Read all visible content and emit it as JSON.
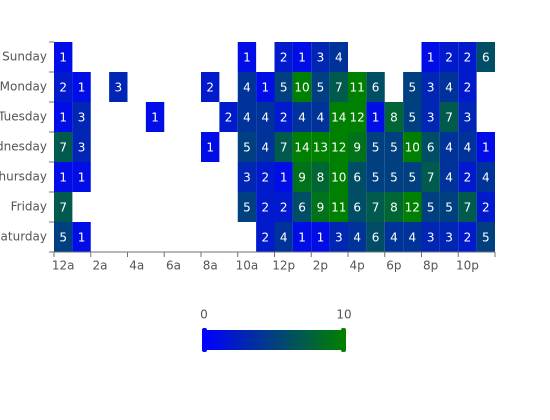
{
  "chart_data": {
    "type": "heatmap",
    "x": [
      "12a",
      null,
      "2a",
      null,
      "4a",
      null,
      "6a",
      null,
      "8a",
      null,
      "10a",
      null,
      "12p",
      null,
      "2p",
      null,
      "4p",
      null,
      "6p",
      null,
      "8p",
      null,
      "10p",
      null
    ],
    "y": [
      "Sunday",
      "Monday",
      "Tuesday",
      "Wednesday",
      "Thursday",
      "Friday",
      "Saturday"
    ],
    "values": [
      [
        1,
        null,
        null,
        null,
        null,
        null,
        null,
        null,
        null,
        null,
        1,
        null,
        2,
        1,
        3,
        4,
        null,
        null,
        null,
        null,
        1,
        2,
        2,
        6
      ],
      [
        2,
        1,
        null,
        3,
        null,
        null,
        null,
        null,
        2,
        null,
        4,
        1,
        5,
        10,
        5,
        7,
        11,
        6,
        null,
        5,
        3,
        4,
        2,
        null
      ],
      [
        1,
        3,
        null,
        null,
        null,
        1,
        null,
        null,
        null,
        2,
        4,
        4,
        2,
        4,
        4,
        14,
        12,
        1,
        8,
        5,
        3,
        7,
        3,
        null
      ],
      [
        7,
        3,
        null,
        null,
        null,
        null,
        null,
        null,
        1,
        null,
        5,
        4,
        7,
        14,
        13,
        12,
        9,
        5,
        5,
        10,
        6,
        4,
        4,
        1
      ],
      [
        1,
        1,
        null,
        null,
        null,
        null,
        null,
        null,
        null,
        null,
        3,
        2,
        1,
        9,
        8,
        10,
        6,
        5,
        5,
        5,
        7,
        4,
        2,
        4
      ],
      [
        7,
        null,
        null,
        null,
        null,
        null,
        null,
        null,
        null,
        null,
        5,
        2,
        2,
        6,
        9,
        11,
        6,
        7,
        8,
        12,
        5,
        5,
        7,
        2
      ],
      [
        5,
        1,
        null,
        null,
        null,
        null,
        null,
        null,
        null,
        null,
        null,
        2,
        4,
        1,
        1,
        3,
        4,
        6,
        4,
        4,
        3,
        3,
        2,
        5
      ]
    ],
    "visual_map": {
      "min": 0,
      "max": 10,
      "colors": [
        "#0000ff",
        "#008000"
      ]
    }
  }
}
